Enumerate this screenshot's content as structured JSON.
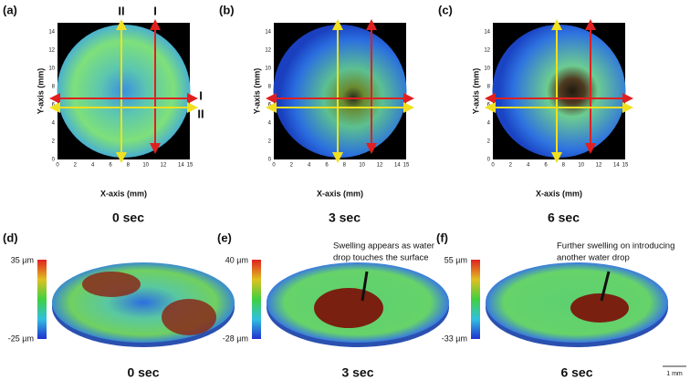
{
  "top_panels": [
    {
      "label": "(a)",
      "y_axis_title": "Y-axis (mm)",
      "x_axis_title": "X-axis (mm)",
      "y_ticks": [
        "0",
        "2",
        "4",
        "6",
        "8",
        "10",
        "12",
        "14"
      ],
      "x_ticks": [
        "0",
        "2",
        "4",
        "6",
        "8",
        "10",
        "12",
        "14",
        "15"
      ],
      "line_labels": {
        "top": [
          "II",
          "I"
        ],
        "right": [
          "I",
          "II"
        ]
      },
      "caption": "0 sec"
    },
    {
      "label": "(b)",
      "y_axis_title": "Y-axis (mm)",
      "x_axis_title": "X-axis (mm)",
      "y_ticks": [
        "0",
        "2",
        "4",
        "6",
        "8",
        "10",
        "12",
        "14"
      ],
      "x_ticks": [
        "0",
        "2",
        "4",
        "6",
        "8",
        "10",
        "12",
        "14",
        "15"
      ],
      "caption": "3 sec"
    },
    {
      "label": "(c)",
      "y_axis_title": "Y-axis (mm)",
      "x_axis_title": "X-axis (mm)",
      "y_ticks": [
        "0",
        "2",
        "4",
        "6",
        "8",
        "10",
        "12",
        "14"
      ],
      "x_ticks": [
        "0",
        "2",
        "4",
        "6",
        "8",
        "10",
        "12",
        "14",
        "15"
      ],
      "caption": "6 sec"
    }
  ],
  "bottom_panels": [
    {
      "label": "(d)",
      "scale_max": "35 µm",
      "scale_min": "-25 µm",
      "caption": "0 sec"
    },
    {
      "label": "(e)",
      "scale_max": "40 µm",
      "scale_min": "-28 µm",
      "annotation": [
        "Swelling appears as water",
        "drop touches the surface"
      ],
      "caption": "3 sec"
    },
    {
      "label": "(f)",
      "scale_max": "55 µm",
      "scale_min": "-33 µm",
      "annotation": [
        "Further swelling on introducing",
        "another water drop"
      ],
      "caption": "6 sec"
    }
  ],
  "scale_bar": "1 mm"
}
